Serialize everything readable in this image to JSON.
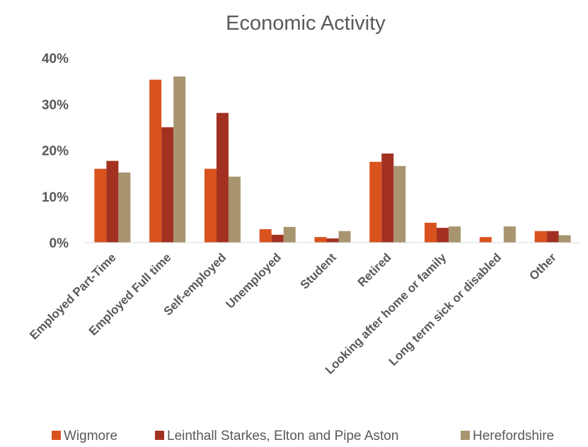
{
  "chart_data": {
    "type": "bar",
    "title": "Economic Activity",
    "xlabel": "",
    "ylabel": "",
    "ylim": [
      0,
      40
    ],
    "yticks": [
      "0%",
      "10%",
      "20%",
      "30%",
      "40%"
    ],
    "categories": [
      "Employed Part-Time",
      "Employed Full time",
      "Self-employed",
      "Unemployed",
      "Student",
      "Retired",
      "Looking after home or family",
      "Long term sick or disabled",
      "Other"
    ],
    "series": [
      {
        "name": "Wigmore",
        "color": "#D9531E",
        "values": [
          16,
          35.3,
          16,
          2.9,
          1.2,
          17.5,
          4.3,
          1.2,
          2.5
        ]
      },
      {
        "name": "Leinthall Starkes, Elton and Pipe Aston",
        "color": "#A33121",
        "values": [
          17.7,
          25,
          28.1,
          1.7,
          0.9,
          19.3,
          3.2,
          0,
          2.5
        ]
      },
      {
        "name": "Herefordshire",
        "color": "#A89570",
        "values": [
          15.2,
          36,
          14.3,
          3.4,
          2.5,
          16.6,
          3.5,
          3.5,
          1.6
        ]
      }
    ],
    "grid": false,
    "legend_position": "bottom"
  }
}
